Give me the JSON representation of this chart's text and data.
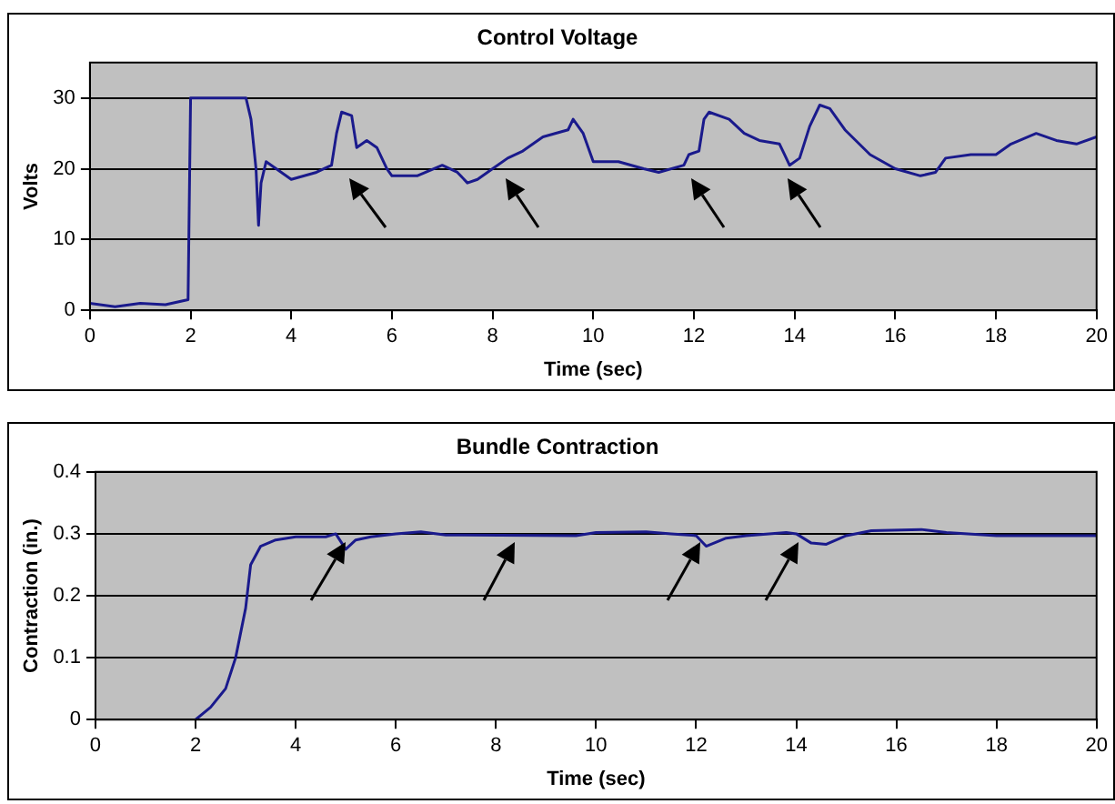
{
  "chart_data": [
    {
      "type": "line",
      "title": "Control Voltage",
      "xlabel": "Time (sec)",
      "ylabel": "Volts",
      "color": "#1a1a8c",
      "xlim": [
        0,
        20
      ],
      "ylim": [
        0,
        35
      ],
      "xticks": [
        0,
        2,
        4,
        6,
        8,
        10,
        12,
        14,
        16,
        18,
        20
      ],
      "yticks": [
        0,
        10,
        20,
        30
      ],
      "grid": "y",
      "x": [
        0,
        0.5,
        1,
        1.5,
        1.95,
        2,
        3.1,
        3.2,
        3.3,
        3.35,
        3.4,
        3.5,
        3.7,
        4,
        4.5,
        4.8,
        4.9,
        5,
        5.2,
        5.3,
        5.5,
        5.7,
        5.9,
        6,
        6.5,
        7,
        7.3,
        7.5,
        7.7,
        8,
        8.3,
        8.6,
        9,
        9.5,
        9.6,
        9.8,
        10,
        10.5,
        11,
        11.3,
        11.8,
        11.9,
        12.1,
        12.2,
        12.3,
        12.7,
        13,
        13.3,
        13.7,
        13.8,
        13.9,
        14.1,
        14.3,
        14.5,
        14.7,
        15,
        15.5,
        16,
        16.5,
        16.8,
        17,
        17.5,
        18,
        18.3,
        18.8,
        19.2,
        19.6,
        20
      ],
      "values": [
        1,
        0.5,
        1,
        0.8,
        1.5,
        30,
        30,
        27,
        20,
        12,
        18,
        21,
        20,
        18.5,
        19.5,
        20.5,
        25,
        28,
        27.5,
        23,
        24,
        23,
        20,
        19,
        19,
        20.5,
        19.5,
        18,
        18.5,
        20,
        21.5,
        22.5,
        24.5,
        25.5,
        27,
        25,
        21,
        21,
        20,
        19.5,
        20.5,
        22,
        22.5,
        27,
        28,
        27,
        25,
        24,
        23.5,
        22,
        20.5,
        21.5,
        26,
        29,
        28.5,
        25.5,
        22,
        20,
        19,
        19.5,
        21.5,
        22,
        22,
        23.5,
        25,
        24,
        23.5,
        24.5
      ]
    },
    {
      "type": "line",
      "title": "Bundle Contraction",
      "xlabel": "Time (sec)",
      "ylabel": "Contraction (in.)",
      "color": "#1a1a8c",
      "xlim": [
        0,
        20
      ],
      "ylim": [
        0,
        0.4
      ],
      "xticks": [
        0,
        2,
        4,
        6,
        8,
        10,
        12,
        14,
        16,
        18,
        20
      ],
      "yticks": [
        0,
        0.1,
        0.2,
        0.3,
        0.4
      ],
      "grid": "y",
      "x": [
        2,
        2.3,
        2.6,
        2.8,
        3,
        3.1,
        3.3,
        3.6,
        4,
        4.6,
        4.8,
        5,
        5.2,
        5.5,
        6,
        6.5,
        7,
        9.6,
        10,
        11,
        11.5,
        12,
        12.2,
        12.6,
        13,
        13.8,
        14,
        14.3,
        14.6,
        15,
        15.5,
        16.5,
        17,
        18,
        20
      ],
      "values": [
        0,
        0.02,
        0.05,
        0.1,
        0.18,
        0.25,
        0.28,
        0.29,
        0.295,
        0.295,
        0.3,
        0.275,
        0.29,
        0.295,
        0.3,
        0.303,
        0.298,
        0.297,
        0.302,
        0.303,
        0.3,
        0.297,
        0.28,
        0.293,
        0.297,
        0.302,
        0.3,
        0.285,
        0.283,
        0.297,
        0.305,
        0.307,
        0.302,
        0.297,
        0.297
      ]
    }
  ]
}
